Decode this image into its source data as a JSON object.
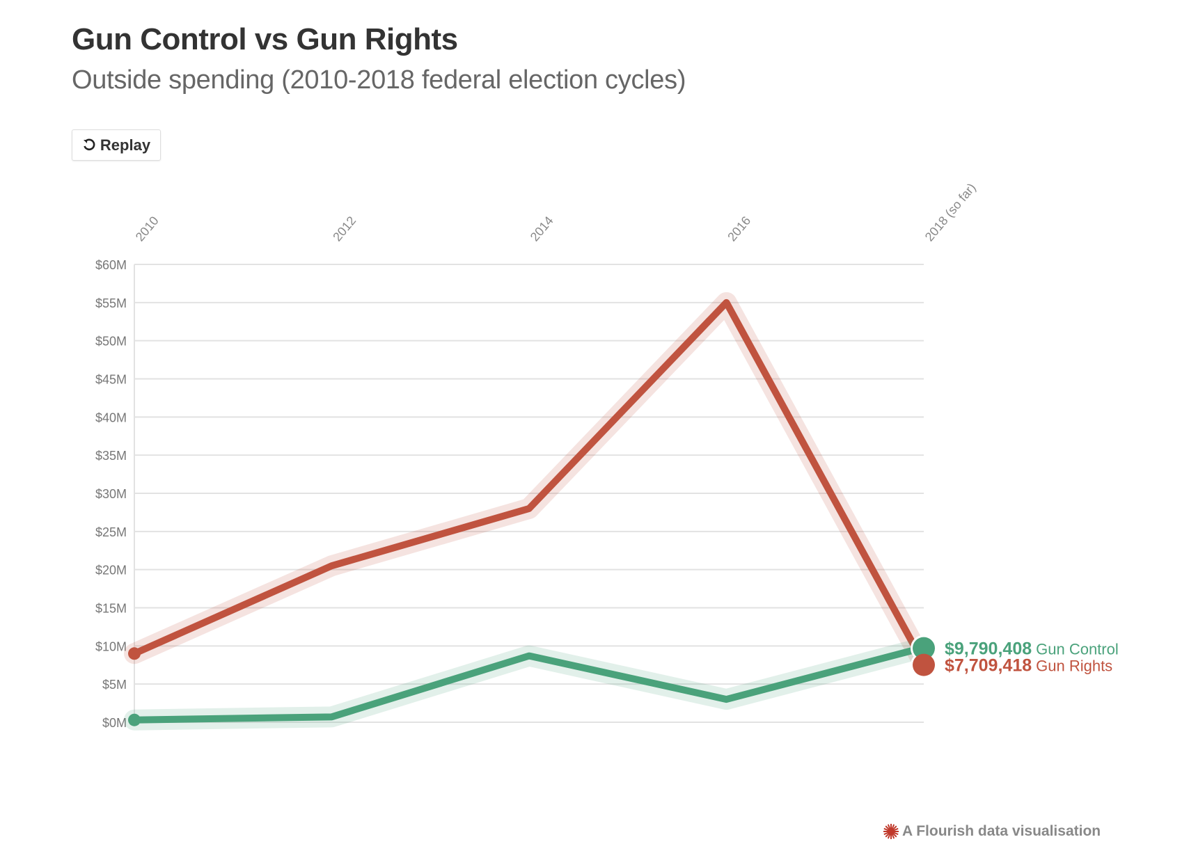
{
  "header": {
    "title": "Gun Control vs Gun Rights",
    "subtitle": "Outside spending (2010-2018 federal election cycles)",
    "replay_label": "Replay",
    "replay_icon": "replay-icon"
  },
  "chart_data": {
    "type": "line",
    "title": "Gun Control vs Gun Rights",
    "subtitle": "Outside spending (2010-2018 federal election cycles)",
    "categories": [
      "2010",
      "2012",
      "2014",
      "2016",
      "2018 (so far)"
    ],
    "yticks": [
      "$0M",
      "$5M",
      "$10M",
      "$15M",
      "$20M",
      "$25M",
      "$30M",
      "$35M",
      "$40M",
      "$45M",
      "$50M",
      "$55M",
      "$60M"
    ],
    "ylim": [
      0,
      60
    ],
    "yunit": "millions USD",
    "grid": true,
    "series": [
      {
        "name": "Gun Rights",
        "color": "#c0533f",
        "values": [
          9.0,
          20.5,
          28.0,
          55.0,
          7.709418
        ],
        "end_label_value": "$7,709,418",
        "end_label_name": "Gun Rights"
      },
      {
        "name": "Gun Control",
        "color": "#4aa27b",
        "values": [
          0.3,
          0.7,
          8.7,
          3.0,
          9.790408
        ],
        "end_label_value": "$9,790,408",
        "end_label_name": "Gun Control"
      }
    ]
  },
  "footer": {
    "text": "A Flourish data visualisation",
    "icon": "flourish-logo-icon",
    "color": "#c0392b"
  }
}
